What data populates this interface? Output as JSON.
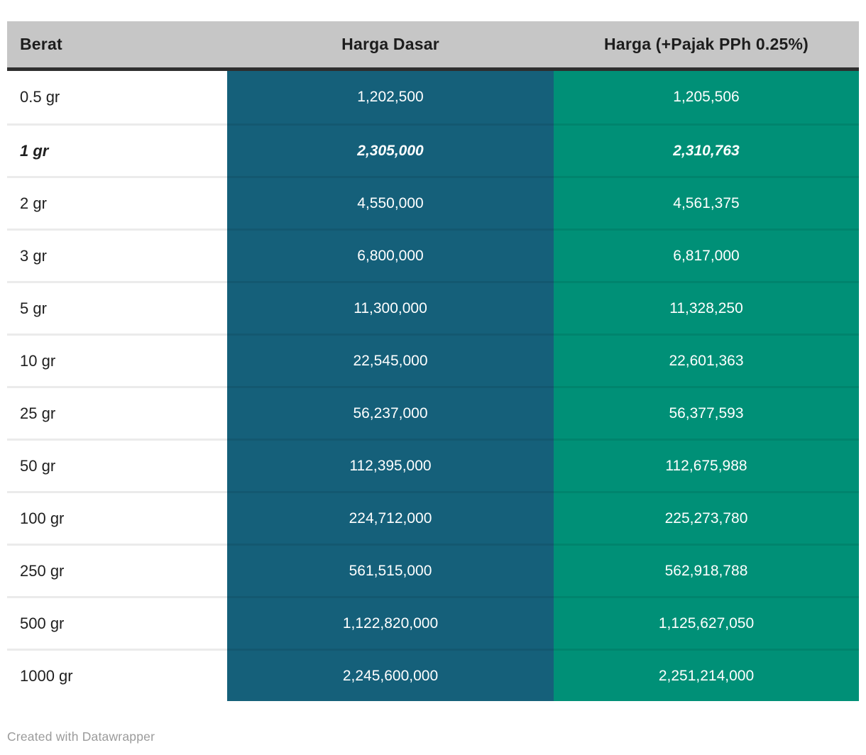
{
  "chart_data": {
    "type": "table",
    "columns": [
      "Berat",
      "Harga Dasar",
      "Harga (+Pajak PPh 0.25%)"
    ],
    "rows": [
      {
        "berat": "0.5 gr",
        "harga_dasar": "1,202,500",
        "harga_pajak": "1,205,506",
        "highlight": false
      },
      {
        "berat": "1 gr",
        "harga_dasar": "2,305,000",
        "harga_pajak": "2,310,763",
        "highlight": true
      },
      {
        "berat": "2 gr",
        "harga_dasar": "4,550,000",
        "harga_pajak": "4,561,375",
        "highlight": false
      },
      {
        "berat": "3 gr",
        "harga_dasar": "6,800,000",
        "harga_pajak": "6,817,000",
        "highlight": false
      },
      {
        "berat": "5 gr",
        "harga_dasar": "11,300,000",
        "harga_pajak": "11,328,250",
        "highlight": false
      },
      {
        "berat": "10 gr",
        "harga_dasar": "22,545,000",
        "harga_pajak": "22,601,363",
        "highlight": false
      },
      {
        "berat": "25 gr",
        "harga_dasar": "56,237,000",
        "harga_pajak": "56,377,593",
        "highlight": false
      },
      {
        "berat": "50 gr",
        "harga_dasar": "112,395,000",
        "harga_pajak": "112,675,988",
        "highlight": false
      },
      {
        "berat": "100 gr",
        "harga_dasar": "224,712,000",
        "harga_pajak": "225,273,780",
        "highlight": false
      },
      {
        "berat": "250 gr",
        "harga_dasar": "561,515,000",
        "harga_pajak": "562,918,788",
        "highlight": false
      },
      {
        "berat": "500 gr",
        "harga_dasar": "1,122,820,000",
        "harga_pajak": "1,125,627,050",
        "highlight": false
      },
      {
        "berat": "1000 gr",
        "harga_dasar": "2,245,600,000",
        "harga_pajak": "2,251,214,000",
        "highlight": false
      }
    ]
  },
  "footer": {
    "attribution": "Created with Datawrapper"
  },
  "colors": {
    "header_bg": "#c6c6c6",
    "header_border": "#2e2e2e",
    "harga_dasar_bg": "#15607a",
    "harga_pajak_bg": "#009077",
    "value_text": "#ffffff",
    "attribution_text": "#9b9b9b"
  }
}
